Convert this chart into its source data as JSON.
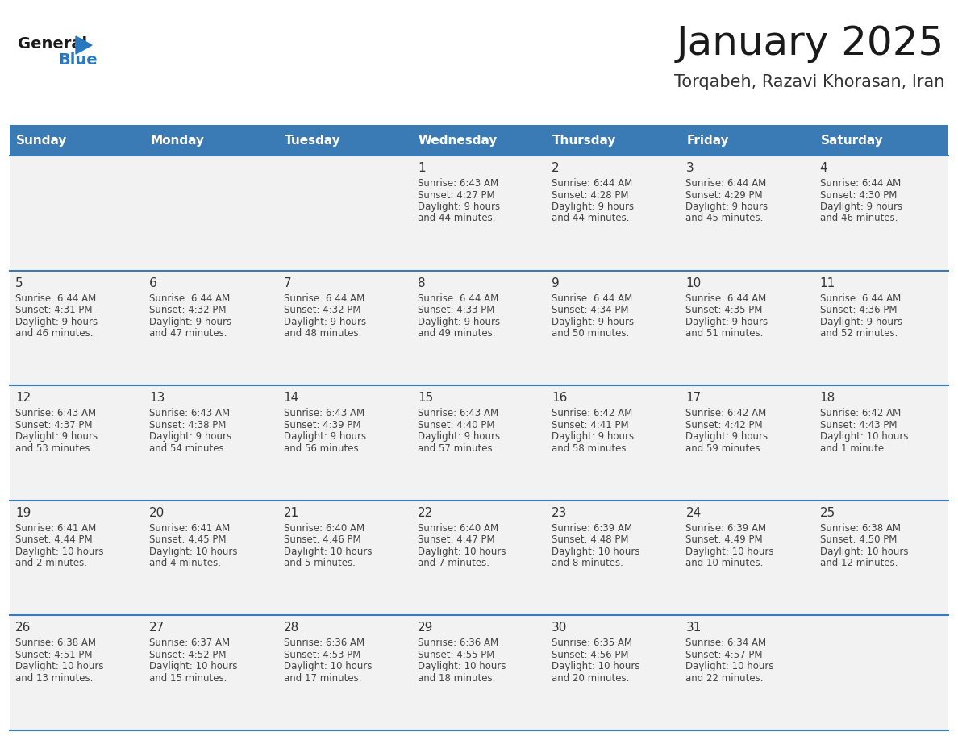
{
  "title": "January 2025",
  "subtitle": "Torqabeh, Razavi Khorasan, Iran",
  "days_of_week": [
    "Sunday",
    "Monday",
    "Tuesday",
    "Wednesday",
    "Thursday",
    "Friday",
    "Saturday"
  ],
  "header_bg": "#3a7ab5",
  "header_text": "#ffffff",
  "cell_bg": "#f2f2f2",
  "separator_color": "#3a7ab5",
  "day_number_color": "#333333",
  "day_info_color": "#444444",
  "title_color": "#1a1a1a",
  "subtitle_color": "#333333",
  "logo_general_color": "#1a1a1a",
  "logo_blue_color": "#2878c0",
  "calendar_data": [
    {
      "day": 1,
      "col": 3,
      "row": 0,
      "sunrise": "6:43 AM",
      "sunset": "4:27 PM",
      "daylight_h": "9 hours",
      "daylight_m": "44 minutes."
    },
    {
      "day": 2,
      "col": 4,
      "row": 0,
      "sunrise": "6:44 AM",
      "sunset": "4:28 PM",
      "daylight_h": "9 hours",
      "daylight_m": "44 minutes."
    },
    {
      "day": 3,
      "col": 5,
      "row": 0,
      "sunrise": "6:44 AM",
      "sunset": "4:29 PM",
      "daylight_h": "9 hours",
      "daylight_m": "45 minutes."
    },
    {
      "day": 4,
      "col": 6,
      "row": 0,
      "sunrise": "6:44 AM",
      "sunset": "4:30 PM",
      "daylight_h": "9 hours",
      "daylight_m": "46 minutes."
    },
    {
      "day": 5,
      "col": 0,
      "row": 1,
      "sunrise": "6:44 AM",
      "sunset": "4:31 PM",
      "daylight_h": "9 hours",
      "daylight_m": "46 minutes."
    },
    {
      "day": 6,
      "col": 1,
      "row": 1,
      "sunrise": "6:44 AM",
      "sunset": "4:32 PM",
      "daylight_h": "9 hours",
      "daylight_m": "47 minutes."
    },
    {
      "day": 7,
      "col": 2,
      "row": 1,
      "sunrise": "6:44 AM",
      "sunset": "4:32 PM",
      "daylight_h": "9 hours",
      "daylight_m": "48 minutes."
    },
    {
      "day": 8,
      "col": 3,
      "row": 1,
      "sunrise": "6:44 AM",
      "sunset": "4:33 PM",
      "daylight_h": "9 hours",
      "daylight_m": "49 minutes."
    },
    {
      "day": 9,
      "col": 4,
      "row": 1,
      "sunrise": "6:44 AM",
      "sunset": "4:34 PM",
      "daylight_h": "9 hours",
      "daylight_m": "50 minutes."
    },
    {
      "day": 10,
      "col": 5,
      "row": 1,
      "sunrise": "6:44 AM",
      "sunset": "4:35 PM",
      "daylight_h": "9 hours",
      "daylight_m": "51 minutes."
    },
    {
      "day": 11,
      "col": 6,
      "row": 1,
      "sunrise": "6:44 AM",
      "sunset": "4:36 PM",
      "daylight_h": "9 hours",
      "daylight_m": "52 minutes."
    },
    {
      "day": 12,
      "col": 0,
      "row": 2,
      "sunrise": "6:43 AM",
      "sunset": "4:37 PM",
      "daylight_h": "9 hours",
      "daylight_m": "53 minutes."
    },
    {
      "day": 13,
      "col": 1,
      "row": 2,
      "sunrise": "6:43 AM",
      "sunset": "4:38 PM",
      "daylight_h": "9 hours",
      "daylight_m": "54 minutes."
    },
    {
      "day": 14,
      "col": 2,
      "row": 2,
      "sunrise": "6:43 AM",
      "sunset": "4:39 PM",
      "daylight_h": "9 hours",
      "daylight_m": "56 minutes."
    },
    {
      "day": 15,
      "col": 3,
      "row": 2,
      "sunrise": "6:43 AM",
      "sunset": "4:40 PM",
      "daylight_h": "9 hours",
      "daylight_m": "57 minutes."
    },
    {
      "day": 16,
      "col": 4,
      "row": 2,
      "sunrise": "6:42 AM",
      "sunset": "4:41 PM",
      "daylight_h": "9 hours",
      "daylight_m": "58 minutes."
    },
    {
      "day": 17,
      "col": 5,
      "row": 2,
      "sunrise": "6:42 AM",
      "sunset": "4:42 PM",
      "daylight_h": "9 hours",
      "daylight_m": "59 minutes."
    },
    {
      "day": 18,
      "col": 6,
      "row": 2,
      "sunrise": "6:42 AM",
      "sunset": "4:43 PM",
      "daylight_h": "10 hours",
      "daylight_m": "1 minute."
    },
    {
      "day": 19,
      "col": 0,
      "row": 3,
      "sunrise": "6:41 AM",
      "sunset": "4:44 PM",
      "daylight_h": "10 hours",
      "daylight_m": "2 minutes."
    },
    {
      "day": 20,
      "col": 1,
      "row": 3,
      "sunrise": "6:41 AM",
      "sunset": "4:45 PM",
      "daylight_h": "10 hours",
      "daylight_m": "4 minutes."
    },
    {
      "day": 21,
      "col": 2,
      "row": 3,
      "sunrise": "6:40 AM",
      "sunset": "4:46 PM",
      "daylight_h": "10 hours",
      "daylight_m": "5 minutes."
    },
    {
      "day": 22,
      "col": 3,
      "row": 3,
      "sunrise": "6:40 AM",
      "sunset": "4:47 PM",
      "daylight_h": "10 hours",
      "daylight_m": "7 minutes."
    },
    {
      "day": 23,
      "col": 4,
      "row": 3,
      "sunrise": "6:39 AM",
      "sunset": "4:48 PM",
      "daylight_h": "10 hours",
      "daylight_m": "8 minutes."
    },
    {
      "day": 24,
      "col": 5,
      "row": 3,
      "sunrise": "6:39 AM",
      "sunset": "4:49 PM",
      "daylight_h": "10 hours",
      "daylight_m": "10 minutes."
    },
    {
      "day": 25,
      "col": 6,
      "row": 3,
      "sunrise": "6:38 AM",
      "sunset": "4:50 PM",
      "daylight_h": "10 hours",
      "daylight_m": "12 minutes."
    },
    {
      "day": 26,
      "col": 0,
      "row": 4,
      "sunrise": "6:38 AM",
      "sunset": "4:51 PM",
      "daylight_h": "10 hours",
      "daylight_m": "13 minutes."
    },
    {
      "day": 27,
      "col": 1,
      "row": 4,
      "sunrise": "6:37 AM",
      "sunset": "4:52 PM",
      "daylight_h": "10 hours",
      "daylight_m": "15 minutes."
    },
    {
      "day": 28,
      "col": 2,
      "row": 4,
      "sunrise": "6:36 AM",
      "sunset": "4:53 PM",
      "daylight_h": "10 hours",
      "daylight_m": "17 minutes."
    },
    {
      "day": 29,
      "col": 3,
      "row": 4,
      "sunrise": "6:36 AM",
      "sunset": "4:55 PM",
      "daylight_h": "10 hours",
      "daylight_m": "18 minutes."
    },
    {
      "day": 30,
      "col": 4,
      "row": 4,
      "sunrise": "6:35 AM",
      "sunset": "4:56 PM",
      "daylight_h": "10 hours",
      "daylight_m": "20 minutes."
    },
    {
      "day": 31,
      "col": 5,
      "row": 4,
      "sunrise": "6:34 AM",
      "sunset": "4:57 PM",
      "daylight_h": "10 hours",
      "daylight_m": "22 minutes."
    }
  ]
}
